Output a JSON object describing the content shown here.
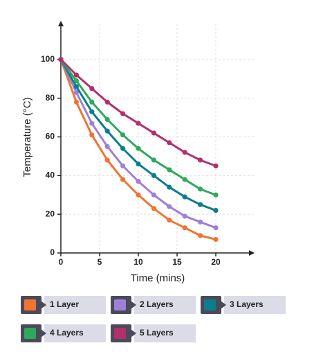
{
  "chart_data": {
    "type": "line",
    "x_label": "Time (mins)",
    "y_label": "Temperature (°C)",
    "x": [
      0,
      2,
      4,
      6,
      8,
      10,
      12,
      14,
      16,
      18,
      20
    ],
    "series": [
      {
        "name": "1 Layer",
        "color": "#f07432",
        "values": [
          100,
          78,
          61,
          48,
          38,
          30,
          23,
          17,
          13,
          9,
          7
        ]
      },
      {
        "name": "2 Layers",
        "color": "#9d80d8",
        "values": [
          100,
          83,
          67,
          55,
          45,
          37,
          30,
          24,
          19,
          16,
          13
        ]
      },
      {
        "name": "3 Layers",
        "color": "#0b7d8c",
        "values": [
          100,
          86,
          73,
          63,
          54,
          46,
          40,
          34,
          29,
          25,
          22
        ]
      },
      {
        "name": "4 Layers",
        "color": "#2eaa5c",
        "values": [
          100,
          89,
          78,
          69,
          61,
          54,
          48,
          43,
          38,
          33,
          30
        ]
      },
      {
        "name": "5 Layers",
        "color": "#b2306e",
        "values": [
          100,
          92,
          85,
          78,
          72,
          67,
          62,
          57,
          52,
          48,
          45
        ]
      }
    ],
    "xlim": [
      0,
      25
    ],
    "ylim": [
      0,
      120
    ],
    "xticks": [
      0,
      5,
      10,
      15,
      20
    ],
    "yticks": [
      0,
      20,
      40,
      60,
      80,
      100
    ],
    "grid": true
  }
}
